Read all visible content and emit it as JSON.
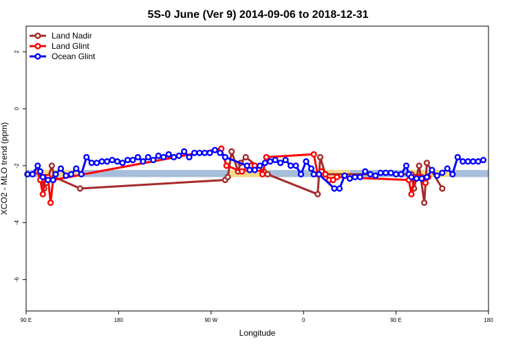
{
  "chart_data": {
    "type": "line",
    "title": "5S-0 June (Ver 9)   2014-09-06 to 2018-12-31",
    "xlabel": "Longitude",
    "ylabel": "XCO2 - MLO trend (ppm)",
    "xlim": [
      90,
      450
    ],
    "ylim": [
      -7.1,
      2.9
    ],
    "x_ticks": [
      {
        "value": 90,
        "label": "90 E"
      },
      {
        "value": 162,
        "label": "180"
      },
      {
        "value": 234,
        "label": "90 W"
      },
      {
        "value": 306,
        "label": "0"
      },
      {
        "value": 378,
        "label": "90 E"
      },
      {
        "value": 450,
        "label": "180"
      }
    ],
    "y_ticks": [
      {
        "value": 2,
        "label": "2"
      },
      {
        "value": 0,
        "label": "0"
      },
      {
        "value": -2,
        "label": "-2"
      },
      {
        "value": -4,
        "label": "-4"
      },
      {
        "value": -6,
        "label": "-6"
      }
    ],
    "bands": [
      {
        "name": "reference band",
        "ymin": -2.4,
        "ymax": -2.15,
        "color": "#a7bedb",
        "xmin": 90,
        "xmax": 450
      },
      {
        "name": "land highlight",
        "ymin": -2.4,
        "ymax": -2.15,
        "color": "#f7d98a",
        "xmin": 99,
        "xmax": 135
      },
      {
        "name": "land highlight",
        "ymin": -2.4,
        "ymax": -2.15,
        "color": "#f7d98a",
        "xmin": 248,
        "xmax": 279
      },
      {
        "name": "land highlight",
        "ymin": -2.4,
        "ymax": -2.15,
        "color": "#f7d98a",
        "xmin": 314,
        "xmax": 342
      },
      {
        "name": "land highlight",
        "ymin": -2.4,
        "ymax": -2.15,
        "color": "#f7d98a",
        "xmin": 388,
        "xmax": 420
      }
    ],
    "legend_position": "top-left",
    "series": [
      {
        "name": "Land Nadir",
        "color": "#a52a2a",
        "x": [
          100,
          102,
          104,
          106,
          110,
          112,
          132,
          245,
          247,
          250,
          255,
          257,
          261,
          275,
          278,
          317,
          319,
          323,
          390,
          392,
          394,
          396,
          400,
          402,
          414
        ],
        "y": [
          -2.2,
          -2.4,
          -2.8,
          -2.6,
          -2.0,
          -2.4,
          -2.8,
          -2.5,
          -2.4,
          -1.5,
          -2.2,
          -1.9,
          -1.7,
          -2.2,
          -2.3,
          -3.0,
          -1.7,
          -2.3,
          -2.3,
          -2.8,
          -2.4,
          -2.0,
          -3.3,
          -1.9,
          -2.8
        ]
      },
      {
        "name": "Land Glint",
        "color": "#ff0000",
        "x": [
          99,
          101,
          103,
          105,
          107,
          109,
          111,
          242,
          246,
          258,
          262,
          265,
          268,
          271,
          274,
          277,
          314,
          317,
          320,
          323,
          326,
          329,
          332,
          388,
          390,
          393,
          396,
          398,
          401,
          403
        ],
        "y": [
          -2.2,
          -2.5,
          -3.0,
          -2.4,
          -2.4,
          -3.3,
          -2.5,
          -1.4,
          -2.0,
          -2.2,
          -2.1,
          -2.0,
          -2.0,
          -2.1,
          -2.3,
          -1.7,
          -1.6,
          -2.3,
          -2.2,
          -2.3,
          -2.5,
          -2.5,
          -2.4,
          -2.5,
          -3.0,
          -2.4,
          -2.4,
          -2.4,
          -2.6,
          -2.4
        ]
      },
      {
        "name": "Ocean Glint",
        "color": "#0000ff",
        "x": [
          91,
          95,
          99,
          101,
          103,
          107,
          111,
          113,
          117,
          121,
          125,
          129,
          133,
          137,
          141,
          145,
          149,
          153,
          157,
          161,
          165,
          169,
          173,
          177,
          181,
          185,
          189,
          193,
          197,
          201,
          205,
          209,
          213,
          217,
          221,
          225,
          229,
          233,
          237,
          241,
          245,
          262,
          264,
          268,
          272,
          276,
          280,
          284,
          288,
          292,
          296,
          300,
          304,
          308,
          312,
          314,
          318,
          330,
          334,
          338,
          342,
          346,
          350,
          354,
          358,
          362,
          366,
          370,
          374,
          378,
          382,
          386,
          388,
          390,
          394,
          398,
          402,
          406,
          410,
          414,
          418,
          422,
          426,
          430,
          434,
          438,
          442,
          446
        ],
        "y": [
          -2.3,
          -2.3,
          -2.0,
          -2.2,
          -2.4,
          -2.5,
          -2.5,
          -2.3,
          -2.1,
          -2.35,
          -2.3,
          -2.1,
          -2.3,
          -1.7,
          -1.9,
          -1.9,
          -1.85,
          -1.85,
          -1.8,
          -1.85,
          -1.9,
          -1.8,
          -1.8,
          -1.7,
          -1.85,
          -1.7,
          -1.8,
          -1.65,
          -1.7,
          -1.6,
          -1.7,
          -1.65,
          -1.5,
          -1.7,
          -1.55,
          -1.55,
          -1.55,
          -1.55,
          -1.45,
          -1.55,
          -1.7,
          -2.0,
          -2.15,
          -2.15,
          -2.0,
          -1.9,
          -1.85,
          -1.8,
          -1.9,
          -1.8,
          -2.0,
          -2.0,
          -2.3,
          -1.85,
          -2.1,
          -2.3,
          -2.3,
          -2.8,
          -2.8,
          -2.35,
          -2.45,
          -2.4,
          -2.4,
          -2.2,
          -2.3,
          -2.35,
          -2.25,
          -2.25,
          -2.25,
          -2.3,
          -2.3,
          -2.0,
          -2.3,
          -2.4,
          -2.45,
          -2.45,
          -2.4,
          -2.15,
          -2.35,
          -2.25,
          -2.1,
          -2.3,
          -1.7,
          -1.85,
          -1.85,
          -1.85,
          -1.85,
          -1.8
        ]
      }
    ]
  }
}
